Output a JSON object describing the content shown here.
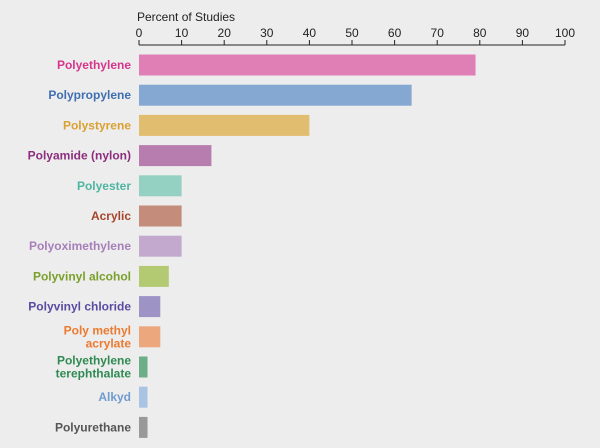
{
  "chart_data": {
    "type": "bar",
    "orientation": "horizontal",
    "title": "",
    "xlabel": "Percent of Studies",
    "ylabel": "",
    "xlim": [
      0,
      100
    ],
    "x_ticks": [
      0,
      10,
      20,
      30,
      40,
      50,
      60,
      70,
      80,
      90,
      100
    ],
    "axis_position": "top",
    "grid": false,
    "legend": "none",
    "categories": [
      {
        "label": [
          "Polyethylene"
        ],
        "value": 79,
        "color": "#e07fb6",
        "label_color": "#d6358c"
      },
      {
        "label": [
          "Polypropylene"
        ],
        "value": 64,
        "color": "#85a8d2",
        "label_color": "#3f6fb0"
      },
      {
        "label": [
          "Polystyrene"
        ],
        "value": 40,
        "color": "#e1bd6f",
        "label_color": "#d9a132"
      },
      {
        "label": [
          "Polyamide (nylon)"
        ],
        "value": 17,
        "color": "#b67dae",
        "label_color": "#8c2e7d"
      },
      {
        "label": [
          "Polyester"
        ],
        "value": 10,
        "color": "#95d1c3",
        "label_color": "#4fb5a3"
      },
      {
        "label": [
          "Acrylic"
        ],
        "value": 10,
        "color": "#c48c7b",
        "label_color": "#a8442b"
      },
      {
        "label": [
          "Polyoximethylene"
        ],
        "value": 10,
        "color": "#c3a9cd",
        "label_color": "#a77fb8"
      },
      {
        "label": [
          "Polyvinyl alcohol"
        ],
        "value": 7,
        "color": "#b3ca73",
        "label_color": "#7aa02c"
      },
      {
        "label": [
          "Polyvinyl chloride"
        ],
        "value": 5,
        "color": "#9d94c5",
        "label_color": "#5a4ba0"
      },
      {
        "label": [
          "Poly methyl",
          "acrylate"
        ],
        "value": 5,
        "color": "#eca77d",
        "label_color": "#ec7a2f"
      },
      {
        "label": [
          "Polyethylene",
          "terephthalate"
        ],
        "value": 2,
        "color": "#6cae87",
        "label_color": "#2f8a52"
      },
      {
        "label": [
          "Alkyd"
        ],
        "value": 2,
        "color": "#a9c4e2",
        "label_color": "#6f9bd0"
      },
      {
        "label": [
          "Polyurethane"
        ],
        "value": 2,
        "color": "#999999",
        "label_color": "#555555"
      }
    ]
  }
}
